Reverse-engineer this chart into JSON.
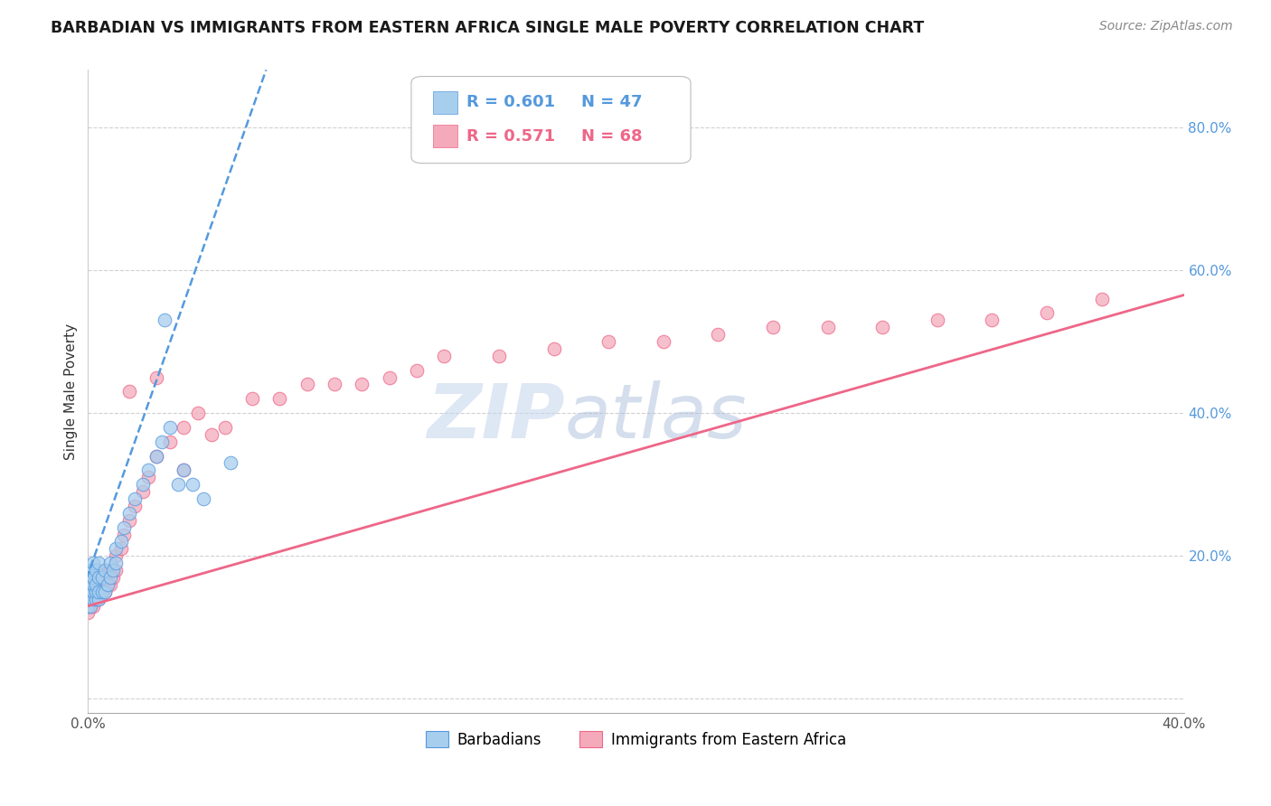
{
  "title": "BARBADIAN VS IMMIGRANTS FROM EASTERN AFRICA SINGLE MALE POVERTY CORRELATION CHART",
  "source": "Source: ZipAtlas.com",
  "ylabel": "Single Male Poverty",
  "xlim": [
    0.0,
    0.4
  ],
  "ylim": [
    -0.02,
    0.88
  ],
  "barbadian_R": 0.601,
  "barbadian_N": 47,
  "eastern_africa_R": 0.571,
  "eastern_africa_N": 68,
  "barbadian_color": "#A8CEEE",
  "eastern_africa_color": "#F4AABB",
  "trendline_barbadian_color": "#5599DD",
  "trendline_eastern_africa_color": "#EE6688",
  "watermark_zip_color": "#C8D8EE",
  "watermark_atlas_color": "#AABEDD",
  "background_color": "#FFFFFF",
  "grid_color": "#CCCCCC",
  "yticklabel_color": "#5599DD",
  "barbadian_scatter_x": [
    0.0,
    0.0,
    0.0,
    0.0,
    0.001,
    0.001,
    0.001,
    0.001,
    0.001,
    0.002,
    0.002,
    0.002,
    0.002,
    0.002,
    0.003,
    0.003,
    0.003,
    0.003,
    0.004,
    0.004,
    0.004,
    0.004,
    0.005,
    0.005,
    0.006,
    0.006,
    0.007,
    0.008,
    0.008,
    0.009,
    0.01,
    0.01,
    0.012,
    0.013,
    0.015,
    0.017,
    0.02,
    0.022,
    0.025,
    0.027,
    0.03,
    0.033,
    0.035,
    0.038,
    0.042,
    0.028,
    0.052
  ],
  "barbadian_scatter_y": [
    0.13,
    0.14,
    0.15,
    0.16,
    0.13,
    0.15,
    0.16,
    0.17,
    0.18,
    0.14,
    0.15,
    0.16,
    0.17,
    0.19,
    0.14,
    0.15,
    0.16,
    0.18,
    0.14,
    0.15,
    0.17,
    0.19,
    0.15,
    0.17,
    0.15,
    0.18,
    0.16,
    0.17,
    0.19,
    0.18,
    0.19,
    0.21,
    0.22,
    0.24,
    0.26,
    0.28,
    0.3,
    0.32,
    0.34,
    0.36,
    0.38,
    0.3,
    0.32,
    0.3,
    0.28,
    0.53,
    0.33
  ],
  "eastern_africa_scatter_x": [
    0.0,
    0.0,
    0.0,
    0.0,
    0.0,
    0.0,
    0.001,
    0.001,
    0.001,
    0.001,
    0.002,
    0.002,
    0.002,
    0.002,
    0.003,
    0.003,
    0.003,
    0.003,
    0.004,
    0.004,
    0.004,
    0.005,
    0.005,
    0.005,
    0.006,
    0.006,
    0.007,
    0.007,
    0.008,
    0.008,
    0.009,
    0.01,
    0.01,
    0.012,
    0.013,
    0.015,
    0.017,
    0.02,
    0.022,
    0.025,
    0.03,
    0.035,
    0.04,
    0.05,
    0.06,
    0.07,
    0.08,
    0.09,
    0.1,
    0.11,
    0.12,
    0.13,
    0.15,
    0.17,
    0.19,
    0.21,
    0.23,
    0.25,
    0.27,
    0.29,
    0.31,
    0.33,
    0.35,
    0.37,
    0.015,
    0.025,
    0.035,
    0.045
  ],
  "eastern_africa_scatter_y": [
    0.12,
    0.13,
    0.14,
    0.15,
    0.16,
    0.17,
    0.13,
    0.14,
    0.15,
    0.16,
    0.13,
    0.14,
    0.15,
    0.16,
    0.14,
    0.15,
    0.16,
    0.17,
    0.14,
    0.15,
    0.16,
    0.15,
    0.16,
    0.17,
    0.15,
    0.17,
    0.16,
    0.18,
    0.16,
    0.18,
    0.17,
    0.18,
    0.2,
    0.21,
    0.23,
    0.25,
    0.27,
    0.29,
    0.31,
    0.34,
    0.36,
    0.38,
    0.4,
    0.38,
    0.42,
    0.42,
    0.44,
    0.44,
    0.44,
    0.45,
    0.46,
    0.48,
    0.48,
    0.49,
    0.5,
    0.5,
    0.51,
    0.52,
    0.52,
    0.52,
    0.53,
    0.53,
    0.54,
    0.56,
    0.43,
    0.45,
    0.32,
    0.37
  ],
  "trendline_ea_x0": 0.0,
  "trendline_ea_y0": 0.13,
  "trendline_ea_x1": 0.4,
  "trendline_ea_y1": 0.565,
  "trendline_barb_x0": -0.005,
  "trendline_barb_y0": 0.12,
  "trendline_barb_x1": 0.065,
  "trendline_barb_y1": 0.88
}
